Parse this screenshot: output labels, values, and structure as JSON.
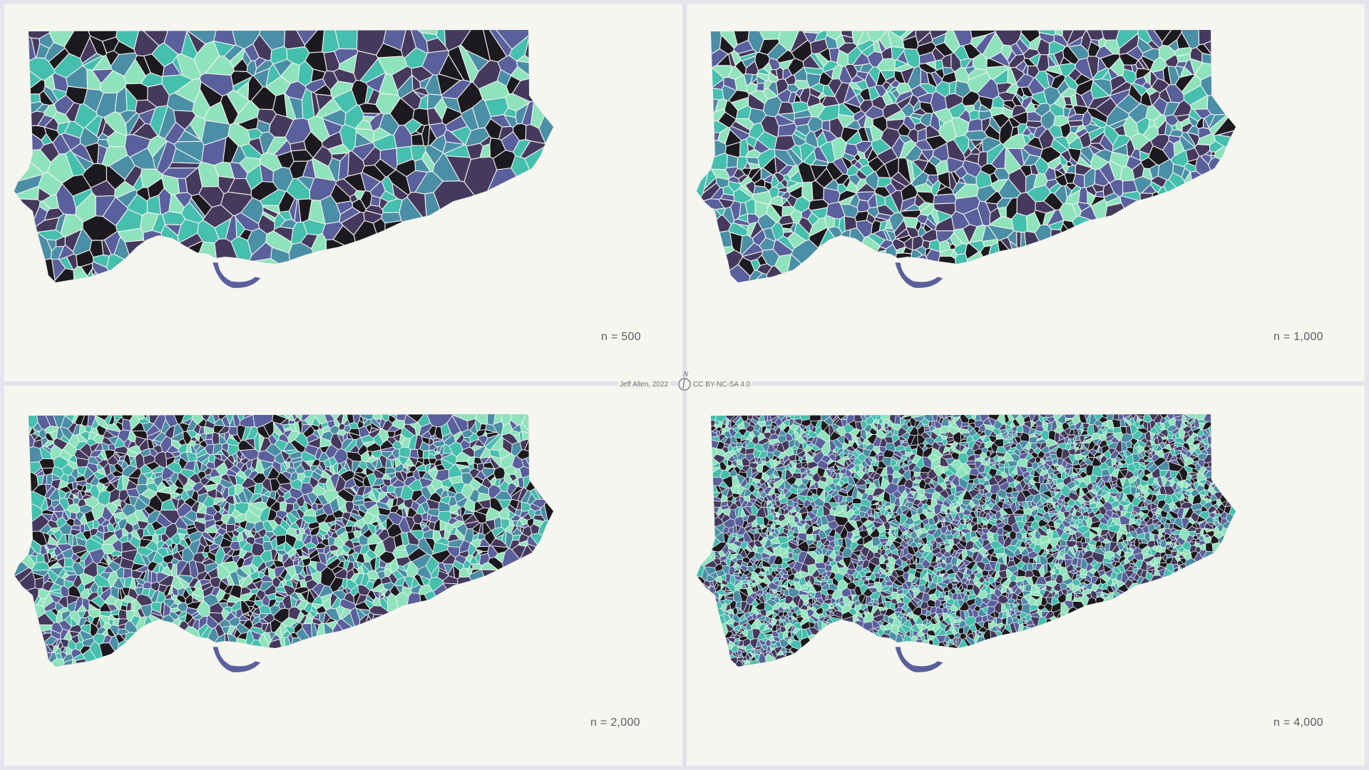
{
  "panels": [
    {
      "id": "p1",
      "label": "n = 500",
      "cells": 500
    },
    {
      "id": "p2",
      "label": "n = 1,000",
      "cells": 1000
    },
    {
      "id": "p3",
      "label": "n = 2,000",
      "cells": 2000
    },
    {
      "id": "p4",
      "label": "n = 4,000",
      "cells": 4000
    }
  ],
  "credit": {
    "author": "Jeff Allen, 2022",
    "license": "CC BY-NC-SA 4.0",
    "north_label": "N"
  },
  "colors": {
    "palette": [
      "#1d1a1f",
      "#453a5e",
      "#5a609c",
      "#4a8fa6",
      "#45bfae",
      "#8fe3bc"
    ],
    "edge": "#f4f2f0",
    "background": "#f6f4ef",
    "divider": "#e1e1ea",
    "label": "#5a5c66"
  }
}
